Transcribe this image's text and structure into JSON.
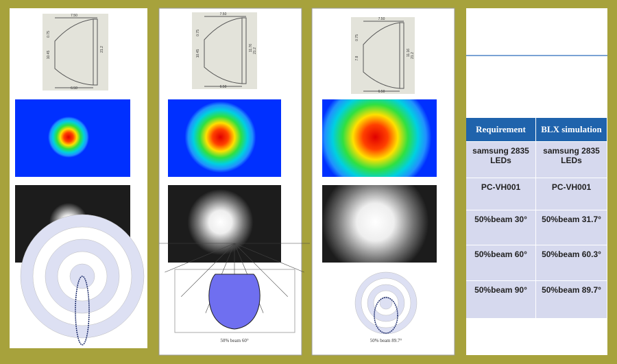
{
  "columns": [
    {
      "drawing_labels": [
        "7.50",
        "0.75",
        "10.45",
        "21.2",
        "6.50"
      ],
      "caption": null
    },
    {
      "drawing_labels": [
        "7.50",
        "0.75",
        "10.45",
        "11.76",
        "21.2",
        "6.50"
      ],
      "caption": "50% beam 60°"
    },
    {
      "drawing_labels": [
        "7.50",
        "0.75",
        "7.8",
        "11.16",
        "21.2",
        "6.50"
      ],
      "caption": "50% beam 89.7°"
    }
  ],
  "table": {
    "header": [
      "Requirement",
      "BLX simulation"
    ],
    "rows": [
      [
        "samsung 2835 LEDs",
        "samsung 2835 LEDs"
      ],
      [
        "PC-VH001",
        "PC-VH001"
      ],
      [
        "50%beam 30°",
        "50%beam 31.7°"
      ],
      [
        "50%beam 60°",
        "50%beam 60.3°"
      ],
      [
        "50%beam 90°",
        "50%beam 89.7°"
      ]
    ]
  }
}
